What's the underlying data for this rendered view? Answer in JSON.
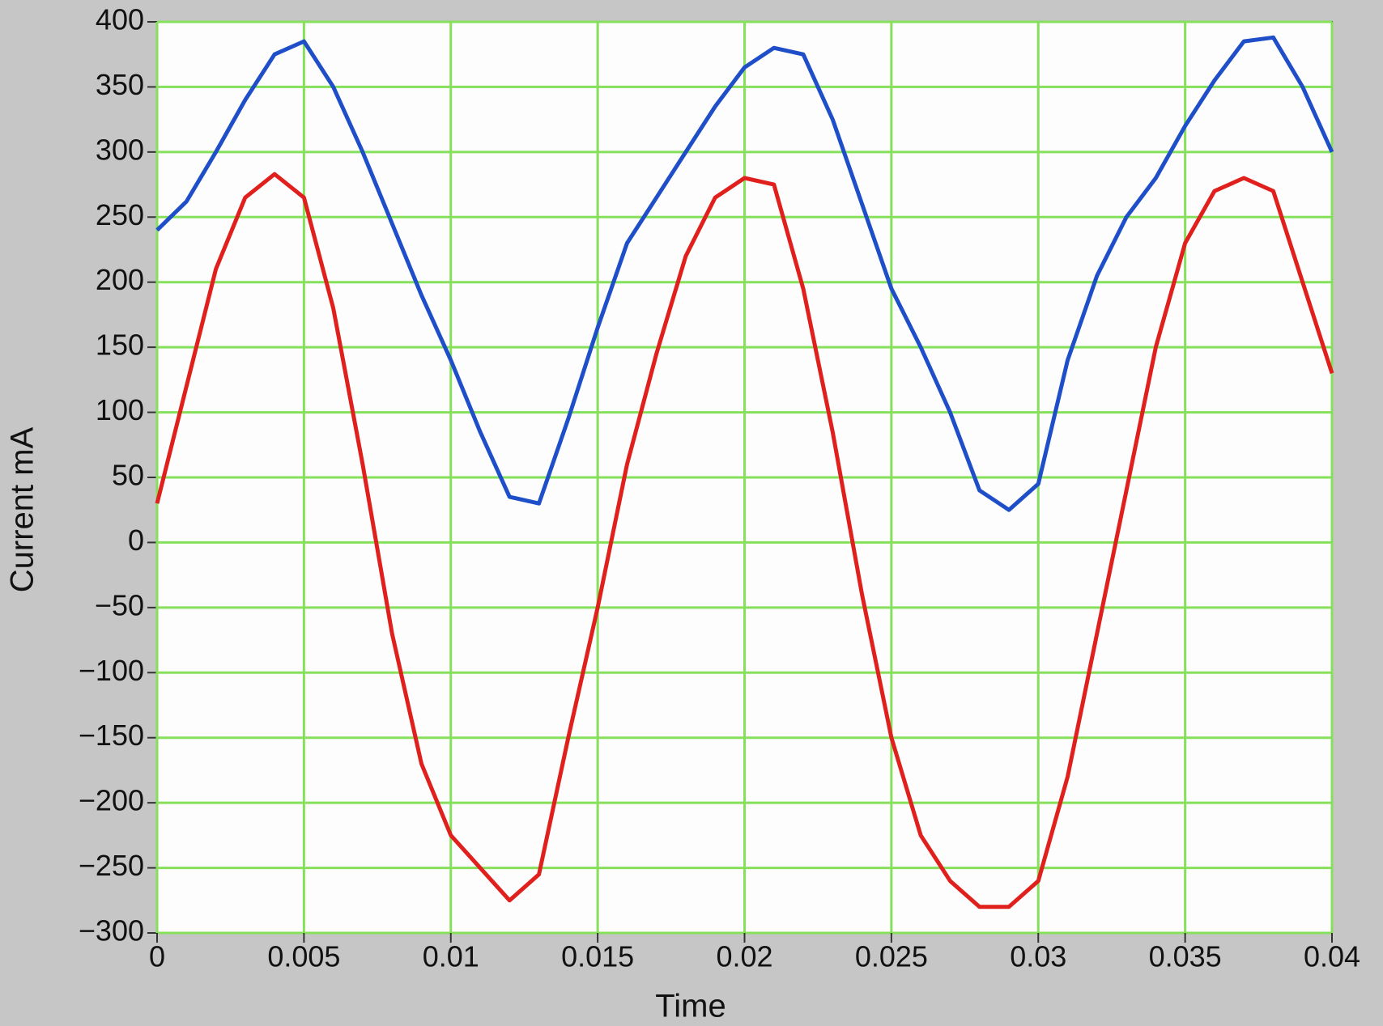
{
  "chart_data": {
    "type": "line",
    "xlabel": "Time",
    "ylabel": "Current mA",
    "x": [
      0,
      0.001,
      0.002,
      0.003,
      0.004,
      0.005,
      0.006,
      0.007,
      0.008,
      0.009,
      0.01,
      0.011,
      0.012,
      0.013,
      0.014,
      0.015,
      0.016,
      0.017,
      0.018,
      0.019,
      0.02,
      0.021,
      0.022,
      0.023,
      0.024,
      0.025,
      0.026,
      0.027,
      0.028,
      0.029,
      0.03,
      0.031,
      0.032,
      0.033,
      0.034,
      0.035,
      0.036,
      0.037,
      0.038,
      0.039,
      0.04
    ],
    "series": [
      {
        "color": "#1f4fc8",
        "values": [
          240,
          262,
          300,
          340,
          375,
          385,
          350,
          300,
          245,
          190,
          140,
          85,
          35,
          30,
          95,
          165,
          230,
          265,
          300,
          335,
          365,
          380,
          375,
          325,
          260,
          195,
          150,
          100,
          40,
          25,
          45,
          140,
          205,
          250,
          280,
          320,
          355,
          385,
          388,
          350,
          300
        ]
      },
      {
        "color": "#e0201c",
        "values": [
          30,
          120,
          210,
          265,
          283,
          265,
          180,
          60,
          -70,
          -170,
          -225,
          -250,
          -275,
          -255,
          -150,
          -50,
          60,
          145,
          220,
          265,
          280,
          275,
          195,
          85,
          -40,
          -150,
          -225,
          -260,
          -280,
          -280,
          -260,
          -180,
          -70,
          40,
          150,
          230,
          270,
          280,
          270,
          200,
          130
        ]
      }
    ],
    "xlim": [
      0,
      0.04
    ],
    "xticks": [
      0,
      0.005,
      0.01,
      0.015,
      0.02,
      0.025,
      0.03,
      0.035,
      0.04
    ],
    "ylim": [
      -300,
      400
    ],
    "yticks": [
      {
        "value": -300,
        "label": "−300"
      },
      {
        "value": -250,
        "label": "−250"
      },
      {
        "value": -200,
        "label": "−200"
      },
      {
        "value": -150,
        "label": "−150"
      },
      {
        "value": -100,
        "label": "−100"
      },
      {
        "value": -50,
        "label": "−50"
      },
      0,
      50,
      100,
      150,
      200,
      250,
      300,
      350,
      400
    ],
    "grid": true,
    "grid_color": "#86e05c"
  }
}
